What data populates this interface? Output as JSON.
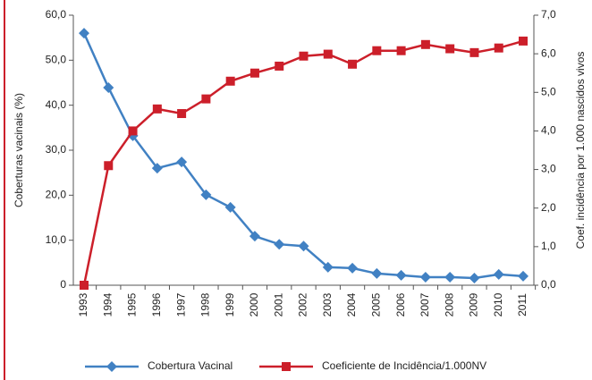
{
  "chart_data": {
    "type": "line",
    "y_label": "Coberturas vacinais (%)",
    "y2_label": "Coef. incidência por 1.000 nascidos vivos",
    "categories": [
      "1993",
      "1994",
      "1995",
      "1996",
      "1997",
      "1998",
      "1999",
      "2000",
      "2001",
      "2002",
      "2003",
      "2004",
      "2005",
      "2006",
      "2007",
      "2008",
      "2009",
      "2010",
      "2011"
    ],
    "series": [
      {
        "name": "Cobertura Vacinal",
        "color": "#4181c3",
        "marker": "diamond",
        "values": [
          56.0,
          43.9,
          33.2,
          26.0,
          27.4,
          20.1,
          17.3,
          10.9,
          9.1,
          8.7,
          4.0,
          3.8,
          2.6,
          2.2,
          1.8,
          1.8,
          1.6,
          2.4,
          2.0
        ]
      },
      {
        "name": "Coeficiente de Incidência/1.000NV",
        "color": "#cc1f2a",
        "marker": "square",
        "axis": "y2",
        "values": [
          0.0,
          3.1,
          4.0,
          4.57,
          4.45,
          4.83,
          5.29,
          5.5,
          5.68,
          5.94,
          5.99,
          5.73,
          6.08,
          6.08,
          6.24,
          6.13,
          6.03,
          6.15,
          6.33
        ]
      }
    ],
    "ylim": [
      0,
      60
    ],
    "yticks": [
      0,
      {
        "value": 10,
        "label": "10,0"
      },
      {
        "value": 20,
        "label": "20,0"
      },
      {
        "value": 30,
        "label": "30,0"
      },
      {
        "value": 40,
        "label": "40,0"
      },
      {
        "value": 50,
        "label": "50,0"
      },
      {
        "value": 60,
        "label": "60,0"
      }
    ],
    "y2lim": [
      0,
      7
    ],
    "y2ticks": [
      {
        "value": 0,
        "label": "0,0"
      },
      {
        "value": 1,
        "label": "1,0"
      },
      {
        "value": 2,
        "label": "2,0"
      },
      {
        "value": 3,
        "label": "3,0"
      },
      {
        "value": 4,
        "label": "4,0"
      },
      {
        "value": 5,
        "label": "5,0"
      },
      {
        "value": 6,
        "label": "6,0"
      },
      {
        "value": 7,
        "label": "7,0"
      }
    ],
    "grid": false,
    "legend": "bottom"
  }
}
